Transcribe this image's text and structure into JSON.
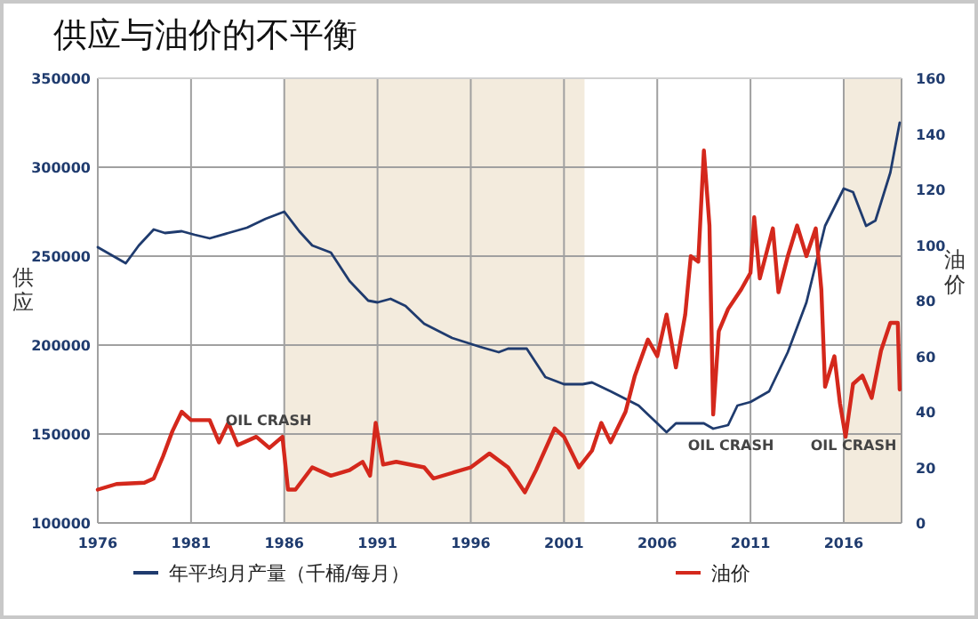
{
  "chart_data": {
    "type": "line",
    "title": "供应与油价的不平衡",
    "ylabel": "供应",
    "y2label": "油价",
    "xlim": [
      1976,
      2019.1
    ],
    "xticks": [
      1976,
      1981,
      1986,
      1991,
      1996,
      2001,
      2006,
      2011,
      2016
    ],
    "ylim": [
      100000,
      350000
    ],
    "yticks": [
      100000,
      150000,
      200000,
      250000,
      300000,
      350000
    ],
    "y2lim": [
      0,
      160
    ],
    "y2ticks": [
      0,
      20,
      40,
      60,
      80,
      100,
      120,
      140,
      160
    ],
    "grid": true,
    "legend": "bottom",
    "bands": [
      {
        "axis": "x",
        "from": 1986,
        "to": 2002.1,
        "color": "#f3ebdd"
      },
      {
        "axis": "x",
        "from": 2016,
        "to": 2019.1,
        "color": "#f3ebdd"
      }
    ],
    "annotations": [
      "OIL CRASH",
      "OIL CRASH",
      "OIL CRASH"
    ],
    "series": [
      {
        "name": "年平均月产量（千桶/每月）",
        "color": "#1f3b6e",
        "x": [
          1976,
          1977,
          1977.5,
          1978.2,
          1979,
          1979.6,
          1980.5,
          1981.2,
          1982,
          1983,
          1984,
          1985,
          1986,
          1986.8,
          1987.5,
          1988.5,
          1989.5,
          1990.5,
          1991,
          1991.7,
          1992.5,
          1993.5,
          1995,
          1996.5,
          1997.5,
          1998,
          1999,
          2000,
          2001,
          2002,
          2002.5,
          2003.5,
          2005,
          2006.5,
          2007,
          2008.5,
          2009,
          2009.8,
          2010.3,
          2011,
          2012,
          2013,
          2014,
          2015,
          2016,
          2016.5,
          2017.2,
          2017.7,
          2018.5,
          2019
        ],
        "values": [
          255000,
          249000,
          246000,
          256000,
          265000,
          263000,
          264000,
          262000,
          260000,
          263000,
          266000,
          271000,
          275000,
          264000,
          256000,
          252000,
          236000,
          225000,
          224000,
          226000,
          222000,
          212000,
          204000,
          199000,
          196000,
          198000,
          198000,
          182000,
          178000,
          178000,
          179000,
          174000,
          166000,
          151000,
          156000,
          156000,
          153000,
          155000,
          166000,
          168000,
          174000,
          196000,
          224000,
          267000,
          288000,
          286000,
          267000,
          270000,
          297000,
          325000
        ]
      },
      {
        "name": "油价",
        "color": "#d4281c",
        "axis": "y2",
        "x": [
          1976,
          1977,
          1978.5,
          1979,
          1979.5,
          1980,
          1980.5,
          1981,
          1982,
          1982.5,
          1983,
          1983.5,
          1984.5,
          1985.2,
          1985.9,
          1986.2,
          1986.6,
          1987.5,
          1988.5,
          1989.5,
          1990.2,
          1990.6,
          1990.9,
          1991.3,
          1992,
          1993.5,
          1994,
          1995,
          1996,
          1997,
          1998,
          1998.9,
          1999.5,
          2000.5,
          2001,
          2001.8,
          2002.5,
          2003,
          2003.5,
          2004.3,
          2004.8,
          2005.5,
          2006,
          2006.5,
          2007,
          2007.5,
          2007.8,
          2008.2,
          2008.5,
          2008.8,
          2009,
          2009.3,
          2009.8,
          2010.5,
          2011,
          2011.2,
          2011.5,
          2012.2,
          2012.5,
          2013,
          2013.5,
          2014,
          2014.5,
          2014.8,
          2015,
          2015.5,
          2015.8,
          2016.1,
          2016.5,
          2017,
          2017.5,
          2018,
          2018.5,
          2018.9,
          2019
        ],
        "values": [
          12,
          14,
          14.5,
          16,
          24,
          33,
          40,
          37,
          37,
          29,
          36,
          28,
          31,
          27,
          31,
          12,
          12,
          20,
          17,
          19,
          22,
          17,
          36,
          21,
          22,
          20,
          16,
          18,
          20,
          25,
          20,
          11,
          19,
          34,
          31,
          20,
          26,
          36,
          29,
          40,
          53,
          66,
          60,
          75,
          56,
          75,
          96,
          94,
          134,
          107,
          39,
          69,
          77,
          84,
          90,
          110,
          88,
          106,
          83,
          96,
          107,
          96,
          106,
          84,
          49,
          60,
          43,
          31,
          50,
          53,
          45,
          62,
          72,
          72,
          48
        ]
      }
    ]
  }
}
